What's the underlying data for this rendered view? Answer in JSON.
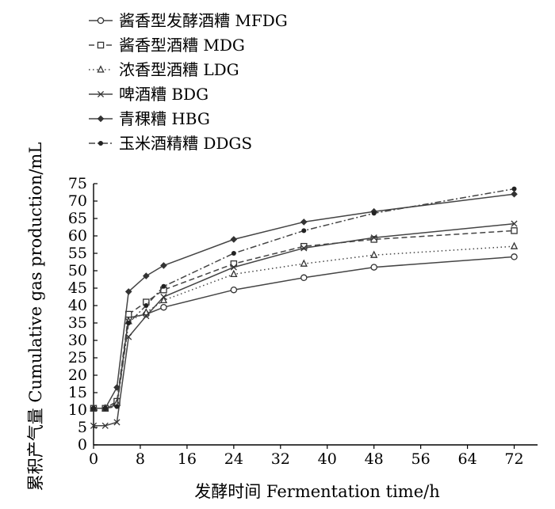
{
  "chart_data": {
    "type": "line",
    "title": "",
    "xlabel": "发酵时间  Fermentation time/h",
    "ylabel": "累积产气量  Cumulative gas production/mL",
    "xlim": [
      0,
      76
    ],
    "ylim": [
      0,
      75
    ],
    "xticks": [
      0,
      8,
      16,
      24,
      32,
      40,
      48,
      56,
      64,
      72
    ],
    "yticks": [
      0,
      5,
      10,
      15,
      20,
      25,
      30,
      35,
      40,
      45,
      50,
      55,
      60,
      65,
      70,
      75
    ],
    "grid": false,
    "legend_position": "top-left",
    "x": [
      0,
      2,
      4,
      6,
      9,
      12,
      24,
      36,
      48,
      72
    ],
    "series": [
      {
        "name": "酱香型发酵酒糟 MFDG",
        "marker": "circle-open",
        "dash": "solid",
        "values": [
          10.5,
          10.5,
          11.5,
          36.5,
          37.5,
          39.5,
          44.5,
          48.0,
          51.0,
          54.0
        ]
      },
      {
        "name": "酱香型酒糟 MDG",
        "marker": "square-open",
        "dash": "dashed",
        "values": [
          10.5,
          10.5,
          12.5,
          37.5,
          41.0,
          44.5,
          52.0,
          57.0,
          59.0,
          61.5
        ]
      },
      {
        "name": "浓香型酒糟 LDG",
        "marker": "triangle-open",
        "dash": "dotted",
        "values": [
          10.5,
          10.5,
          12.0,
          35.5,
          38.0,
          41.5,
          49.0,
          52.0,
          54.5,
          57.0
        ]
      },
      {
        "name": "啤酒糟 BDG",
        "marker": "cross",
        "dash": "solid",
        "values": [
          5.5,
          5.5,
          6.5,
          31.0,
          37.0,
          42.5,
          51.0,
          56.5,
          59.5,
          63.5
        ]
      },
      {
        "name": "青稞糟 HBG",
        "marker": "diamond-filled",
        "dash": "solid",
        "values": [
          10.5,
          10.5,
          16.5,
          44.0,
          48.5,
          51.5,
          59.0,
          64.0,
          67.0,
          72.0
        ]
      },
      {
        "name": "玉米酒精糟 DDGS",
        "marker": "dot-filled",
        "dash": "dashdot",
        "values": [
          10.5,
          10.5,
          11.0,
          35.0,
          40.0,
          45.5,
          55.0,
          61.5,
          66.5,
          73.5
        ]
      }
    ]
  }
}
